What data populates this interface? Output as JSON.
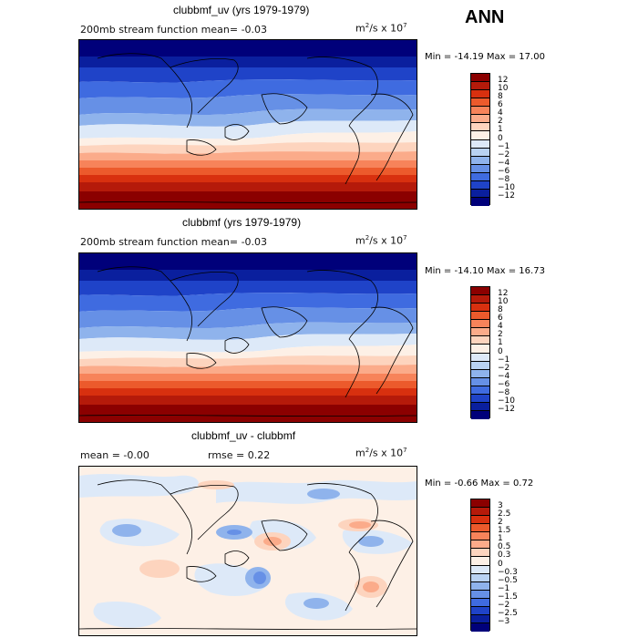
{
  "season": "ANN",
  "panels": [
    {
      "title": "clubbmf_uv (yrs 1979-1979)",
      "left_label": "200mb stream function  mean=  -0.03",
      "units_base": "m",
      "units_sup": "2",
      "units_mid": "/s x 10",
      "units_exp": "7",
      "min_max": "Min = -14.19 Max =  17.00"
    },
    {
      "title": "clubbmf (yrs 1979-1979)",
      "left_label": "200mb stream function  mean=  -0.03",
      "units_base": "m",
      "units_sup": "2",
      "units_mid": "/s x 10",
      "units_exp": "7",
      "min_max": "Min = -14.10 Max =  16.73"
    },
    {
      "title": "clubbmf_uv - clubbmf",
      "mean_label": "mean =  -0.00",
      "rmse_label": "rmse =  0.22",
      "units_base": "m",
      "units_sup": "2",
      "units_mid": "/s x 10",
      "units_exp": "7",
      "min_max": "Min = -0.66 Max =  0.72"
    }
  ],
  "colorbar_abs": {
    "labels": [
      "12",
      "10",
      "8",
      "6",
      "4",
      "2",
      "1",
      "0",
      "−1",
      "−2",
      "−4",
      "−6",
      "−8",
      "−10",
      "−12"
    ],
    "colors": [
      "#8b0000",
      "#b51a0a",
      "#d8300f",
      "#ec5a2c",
      "#f7835a",
      "#fbab8a",
      "#fdd4be",
      "#fdf0e6",
      "#dde9f8",
      "#b9d2f2",
      "#8fb3ec",
      "#6690e6",
      "#3f6be0",
      "#1f43c8",
      "#0a1f9e",
      "#00007a"
    ]
  },
  "colorbar_diff": {
    "labels": [
      "3",
      "2.5",
      "2",
      "1.5",
      "1",
      "0.5",
      "0.3",
      "0",
      "−0.3",
      "−0.5",
      "−1",
      "−1.5",
      "−2",
      "−2.5",
      "−3"
    ],
    "colors": [
      "#8b0000",
      "#b51a0a",
      "#d8300f",
      "#ec5a2c",
      "#f7835a",
      "#fbab8a",
      "#fdd4be",
      "#fdf0e6",
      "#dde9f8",
      "#b9d2f2",
      "#8fb3ec",
      "#6690e6",
      "#3f6be0",
      "#1f43c8",
      "#0a1f9e",
      "#00007a"
    ]
  }
}
